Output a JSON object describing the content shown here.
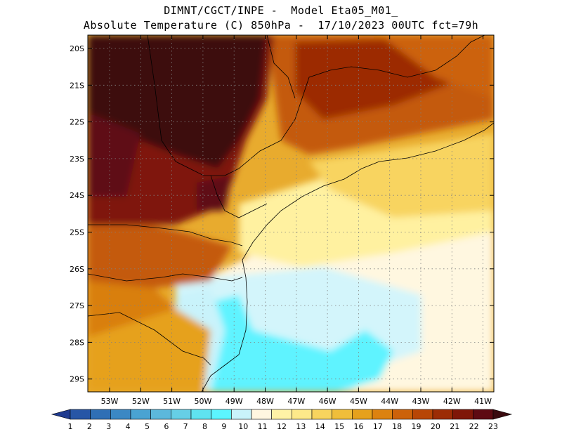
{
  "title": {
    "line1": "DIMNT/CGCT/INPE -  Model Eta05_M01_",
    "line2": "Absolute Temperature (C) 850hPa -  17/10/2023 00UTC fct=79h"
  },
  "map": {
    "lat_labels": [
      "20S",
      "21S",
      "22S",
      "23S",
      "24S",
      "25S",
      "26S",
      "27S",
      "28S",
      "29S"
    ],
    "lon_labels": [
      "53W",
      "52W",
      "51W",
      "50W",
      "49W",
      "48W",
      "47W",
      "46W",
      "45W",
      "44W",
      "43W",
      "42W",
      "41W"
    ],
    "regions": [
      {
        "name": "hot-core-northwest",
        "value": 23
      },
      {
        "name": "warm-band-east",
        "value": 20
      },
      {
        "name": "cool-ocean-south",
        "value": 10
      }
    ]
  },
  "colorbar": {
    "labels": [
      "1",
      "2",
      "3",
      "4",
      "5",
      "6",
      "7",
      "8",
      "9",
      "10",
      "11",
      "12",
      "13",
      "14",
      "15",
      "16",
      "17",
      "18",
      "19",
      "20",
      "21",
      "22",
      "23"
    ],
    "colors": [
      "#1f3a8f",
      "#2756a6",
      "#2f6fb5",
      "#3b88c4",
      "#4aa3d2",
      "#5cb8dc",
      "#66cfe6",
      "#5fe3f0",
      "#5cf5ff",
      "#c9f3fb",
      "#fff6e0",
      "#fff2a6",
      "#fde98a",
      "#f8d45e",
      "#f0be3a",
      "#e6a11c",
      "#dc8210",
      "#cc620a",
      "#b84606",
      "#9c2c05",
      "#7f1708",
      "#5e0a12",
      "#3a0a0f"
    ]
  }
}
